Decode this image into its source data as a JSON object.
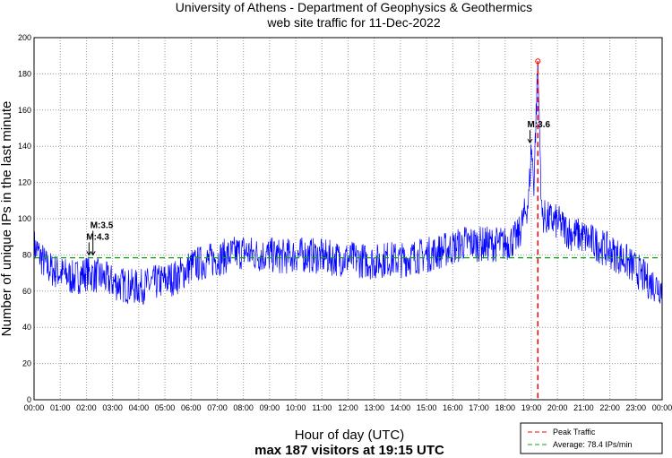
{
  "chart_data": {
    "type": "line",
    "title": "University of Athens - Department of Geophysics & Geothermics",
    "subtitle": "web site traffic for 11-Dec-2022",
    "xlabel": "Hour of day (UTC)",
    "xlabel2": "max 187 visitors at 19:15 UTC",
    "ylabel": "Number of unique IPs in the last minute",
    "ylim": [
      0,
      200
    ],
    "xlim_hours": [
      0,
      24
    ],
    "yticks": [
      "0",
      "20",
      "40",
      "60",
      "80",
      "100",
      "120",
      "140",
      "160",
      "180",
      "200"
    ],
    "xticks": [
      "00:00",
      "01:00",
      "02:00",
      "03:00",
      "04:00",
      "05:00",
      "06:00",
      "07:00",
      "08:00",
      "09:00",
      "10:00",
      "11:00",
      "12:00",
      "13:00",
      "14:00",
      "15:00",
      "16:00",
      "17:00",
      "18:00",
      "19:00",
      "20:00",
      "21:00",
      "22:00",
      "23:00",
      "00:00"
    ],
    "grid": true,
    "series": [
      {
        "name": "Traffic",
        "color": "#0000ff",
        "x_hours": [
          0,
          0.5,
          1,
          1.5,
          2,
          2.5,
          3,
          3.5,
          4,
          4.5,
          5,
          5.5,
          6,
          6.5,
          7,
          7.5,
          8,
          8.5,
          9,
          9.5,
          10,
          10.5,
          11,
          11.5,
          12,
          12.5,
          13,
          13.5,
          14,
          14.5,
          15,
          15.5,
          16,
          16.5,
          17,
          17.5,
          18,
          18.5,
          18.9,
          19.0,
          19.1,
          19.25,
          19.4,
          19.6,
          20,
          20.5,
          21,
          21.5,
          22,
          22.5,
          23,
          23.5,
          24
        ],
        "values": [
          85,
          73,
          70,
          67,
          70,
          68,
          65,
          63,
          62,
          64,
          66,
          68,
          74,
          76,
          78,
          80,
          82,
          80,
          80,
          79,
          80,
          80,
          79,
          78,
          78,
          77,
          76,
          78,
          77,
          79,
          80,
          82,
          84,
          87,
          86,
          86,
          86,
          90,
          110,
          140,
          120,
          187,
          102,
          100,
          98,
          92,
          90,
          86,
          82,
          78,
          72,
          65,
          62
        ]
      }
    ],
    "peak": {
      "hour": 19.25,
      "value": 187,
      "color": "#ff0000"
    },
    "average": {
      "value": 78.4,
      "color": "#00aa00"
    },
    "annotations": [
      {
        "text": "M:4.3",
        "hour": 2.1,
        "value": 80
      },
      {
        "text": "M:3.5",
        "hour": 2.25,
        "value": 80
      },
      {
        "text": "M:3.6",
        "hour": 18.95,
        "value": 142
      }
    ],
    "legend": {
      "position": "bottom-right",
      "entries": [
        "Peak Traffic",
        "Average: 78.4 IPs/min"
      ]
    }
  }
}
